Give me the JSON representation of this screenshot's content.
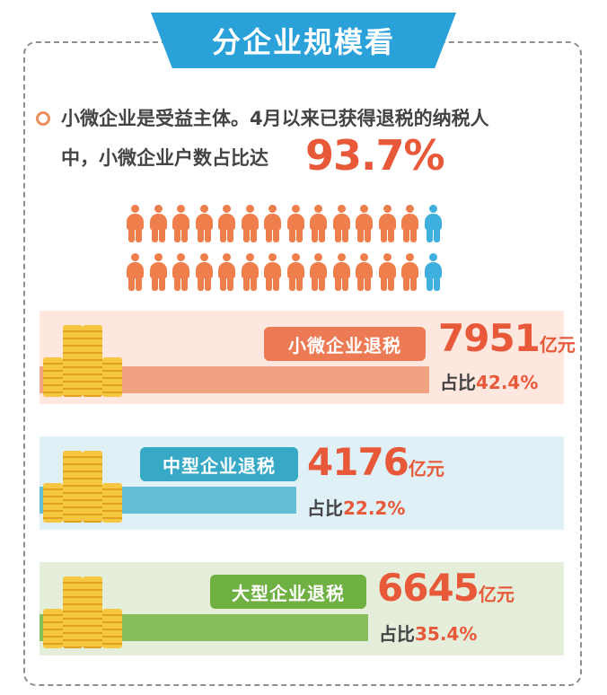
{
  "title": "分企业规模看",
  "intro": {
    "line1": "小微企业是受益主体。4月以来已获得退税的纳税人",
    "line2": "中，小微企业户数占比达",
    "highlight": "93.7%"
  },
  "people_chart": {
    "rows": 2,
    "per_row": 14,
    "highlighted_per_row": 13,
    "colors": {
      "highlight": "#ee7f4c",
      "other": "#3fb0dd"
    }
  },
  "categories": [
    {
      "label": "小微企业退税",
      "amount": "7951",
      "unit": "亿元",
      "share_prefix": "占比",
      "share_value": "42.4%",
      "color": "#ec7a55",
      "bar_color": "#f0a283",
      "share_fraction": 0.424
    },
    {
      "label": "中型企业退税",
      "amount": "4176",
      "unit": "亿元",
      "share_prefix": "占比",
      "share_value": "22.2%",
      "color": "#37a9c7",
      "bar_color": "#62bfd6",
      "share_fraction": 0.222
    },
    {
      "label": "大型企业退税",
      "amount": "6645",
      "unit": "亿元",
      "share_prefix": "占比",
      "share_value": "35.4%",
      "color": "#6fb043",
      "bar_color": "#86c05a",
      "share_fraction": 0.354
    }
  ]
}
